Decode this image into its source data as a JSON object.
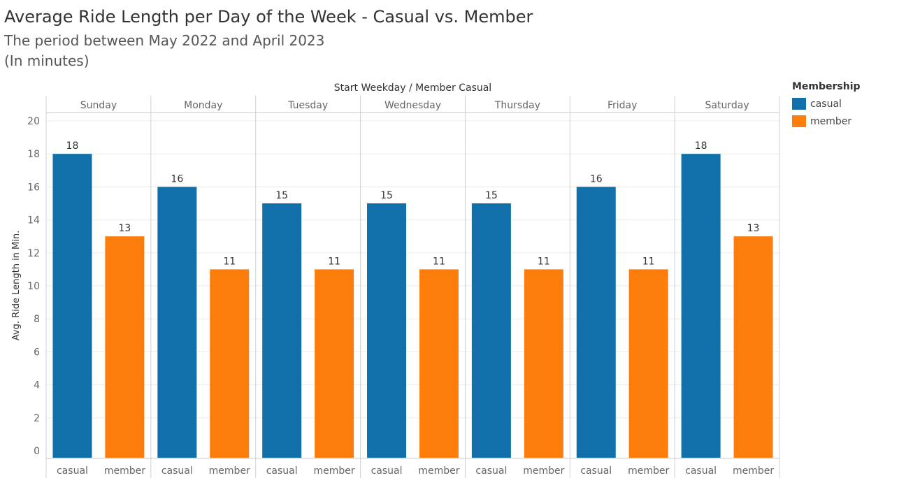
{
  "title": "Average Ride Length per Day of the Week - Casual vs. Member",
  "subtitle": "The period between May 2022 and April 2023",
  "subtitle2": "(In minutes)",
  "header_label": "Start Weekday / Member Casual",
  "legend": {
    "title": "Membership",
    "items": [
      {
        "label": "casual",
        "color": "#1170aa"
      },
      {
        "label": "member",
        "color": "#fc7d0b"
      }
    ]
  },
  "chart_data": {
    "type": "bar",
    "xlabel": "",
    "ylabel": "Avg. Ride Length in Min.",
    "ylim": [
      0,
      20
    ],
    "yticks": [
      0,
      2,
      4,
      6,
      8,
      10,
      12,
      14,
      16,
      18,
      20
    ],
    "categories": [
      "Sunday",
      "Monday",
      "Tuesday",
      "Wednesday",
      "Thursday",
      "Friday",
      "Saturday"
    ],
    "series": [
      {
        "name": "casual",
        "color": "#1170aa",
        "values": [
          18,
          16,
          15,
          15,
          15,
          16,
          18
        ]
      },
      {
        "name": "member",
        "color": "#fc7d0b",
        "values": [
          13,
          11,
          11,
          11,
          11,
          11,
          13
        ]
      }
    ],
    "grid": true,
    "legend_position": "right"
  }
}
